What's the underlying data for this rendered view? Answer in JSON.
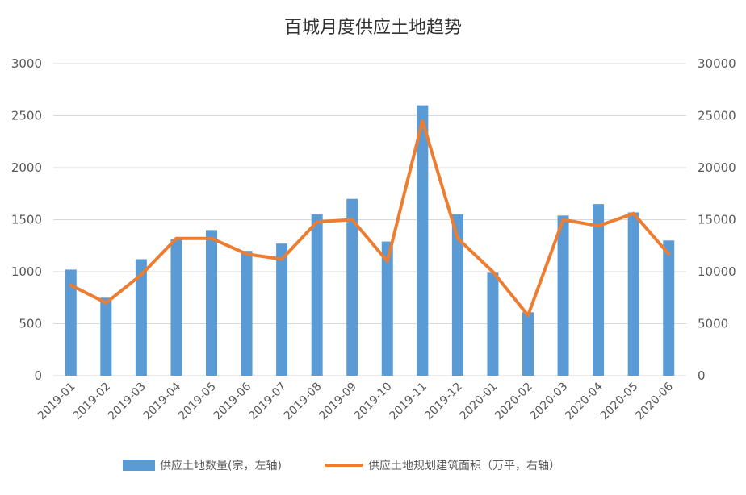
{
  "chart_data": {
    "type": "bar",
    "title": "百城月度供应土地趋势",
    "categories": [
      "2019-01",
      "2019-02",
      "2019-03",
      "2019-04",
      "2019-05",
      "2019-06",
      "2019-07",
      "2019-08",
      "2019-09",
      "2019-10",
      "2019-11",
      "2019-12",
      "2020-01",
      "2020-02",
      "2020-03",
      "2020-04",
      "2020-05",
      "2020-06"
    ],
    "series": [
      {
        "name": "供应土地数量(宗，左轴)",
        "type": "bar",
        "axis": "left",
        "color": "#5B9BD5",
        "values": [
          1020,
          750,
          1120,
          1310,
          1400,
          1200,
          1270,
          1550,
          1700,
          1290,
          2600,
          1550,
          990,
          610,
          1540,
          1650,
          1570,
          1300
        ]
      },
      {
        "name": "供应土地规划建筑面积（万平，右轴）",
        "type": "line",
        "axis": "right",
        "color": "#ED7D31",
        "values": [
          8700,
          7000,
          9700,
          13200,
          13200,
          11700,
          11200,
          14800,
          15000,
          11000,
          24500,
          13200,
          10000,
          5800,
          15000,
          14400,
          15600,
          11700
        ]
      }
    ],
    "y_left": {
      "min": 0,
      "max": 3000,
      "ticks": [
        0,
        500,
        1000,
        1500,
        2000,
        2500,
        3000
      ]
    },
    "y_right": {
      "min": 0,
      "max": 30000,
      "ticks": [
        0,
        5000,
        10000,
        15000,
        20000,
        25000,
        30000
      ]
    },
    "grid": true,
    "legend": "bottom"
  }
}
